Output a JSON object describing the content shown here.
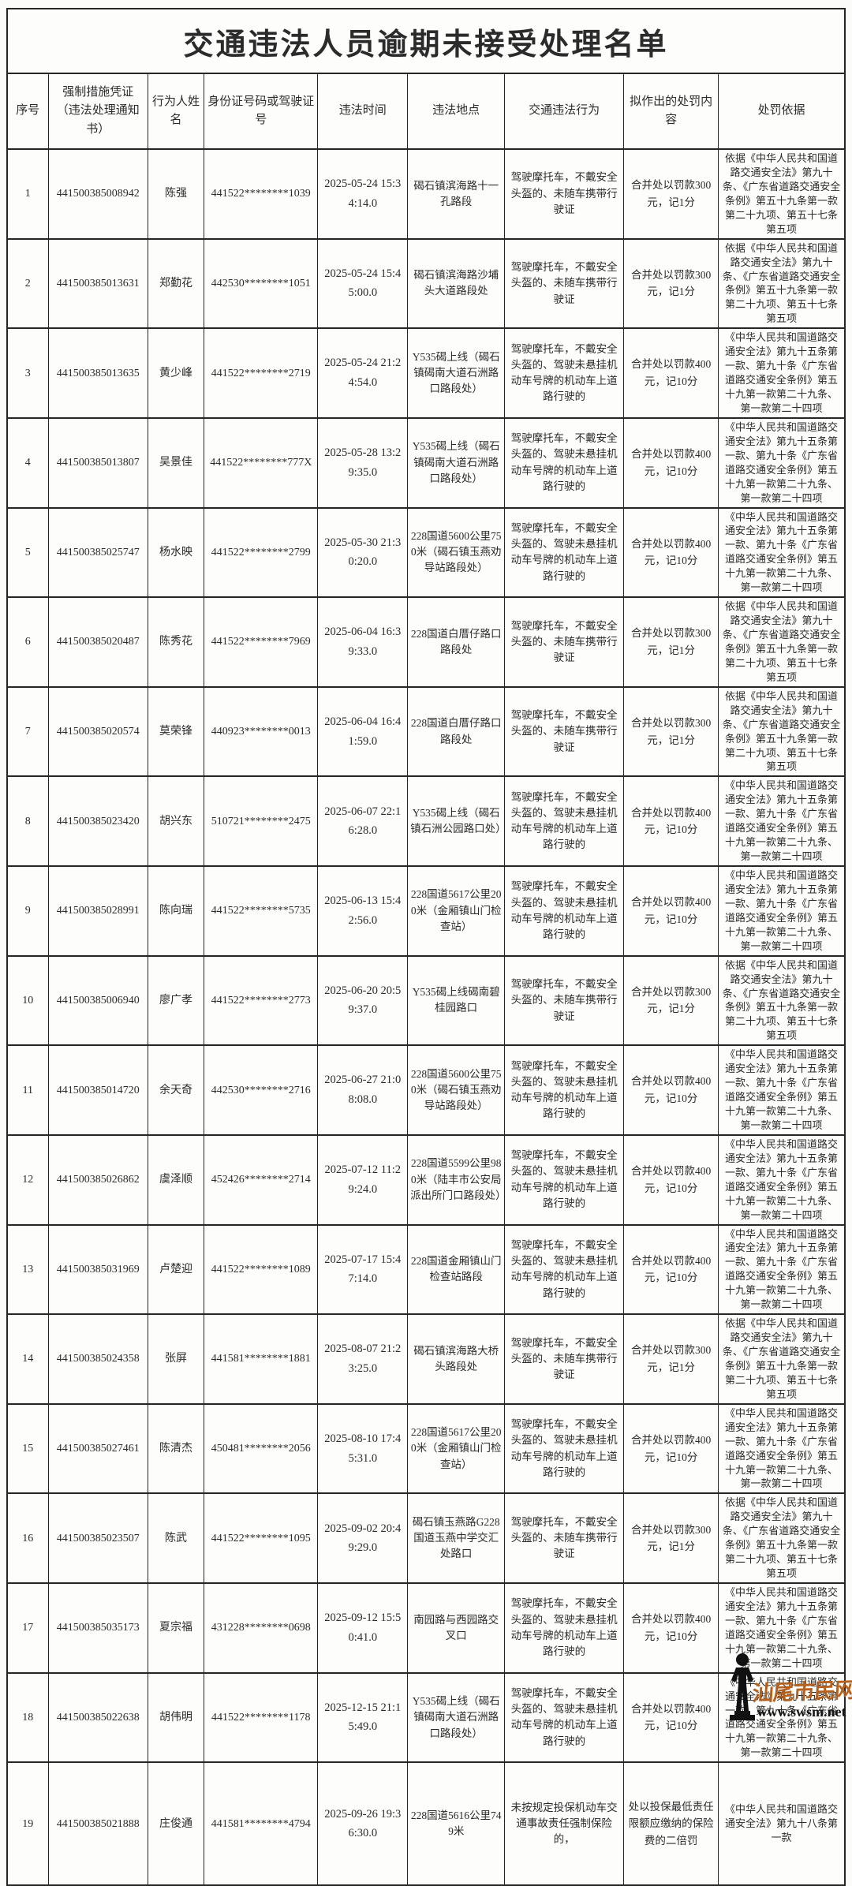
{
  "page": {
    "title": "交通违法人员逾期未接受处理名单"
  },
  "table": {
    "columns": [
      "序号",
      "强制措施凭证（违法处理通知书）",
      "行为人姓名",
      "身份证号码或驾驶证号",
      "违法时间",
      "违法地点",
      "交通违法行为",
      "拟作出的处罚内容",
      "处罚依据"
    ],
    "rows": [
      {
        "cells": [
          "1",
          "441500385008942",
          "陈强",
          "441522********1039",
          "2025-05-24 15:34:14.0",
          "碣石镇滨海路十一孔路段",
          "驾驶摩托车，不戴安全头盔的、未随车携带行驶证",
          "合并处以罚款300元，记1分",
          "依据《中华人民共和国道路交通安全法》第九十条、《广东省道路交通安全条例》第五十九条第一款第二十九项、第五十七条第五项"
        ]
      },
      {
        "cells": [
          "2",
          "441500385013631",
          "郑勤花",
          "442530********1051",
          "2025-05-24 15:45:00.0",
          "碣石镇滨海路沙埔头大道路段处",
          "驾驶摩托车，不戴安全头盔的、未随车携带行驶证",
          "合并处以罚款300元，记1分",
          "依据《中华人民共和国道路交通安全法》第九十条、《广东省道路交通安全条例》第五十九条第一款第二十九项、第五十七条第五项"
        ]
      },
      {
        "cells": [
          "3",
          "441500385013635",
          "黄少峰",
          "441522********2719",
          "2025-05-24 21:24:54.0",
          "Y535碣上线（碣石镇碣南大道石洲路口路段处）",
          "驾驶摩托车，不戴安全头盔的、驾驶未悬挂机动车号牌的机动车上道路行驶的",
          "合并处以罚款400元，记10分",
          "《中华人民共和国道路交通安全法》第九十五条第一款、第九十条《广东省道路交通安全条例》第五十九第一款第二十九条、第一款第二十四项"
        ]
      },
      {
        "cells": [
          "4",
          "441500385013807",
          "吴景佳",
          "441522********777X",
          "2025-05-28 13:29:35.0",
          "Y535碣上线（碣石镇碣南大道石洲路口路段处）",
          "驾驶摩托车，不戴安全头盔的、驾驶未悬挂机动车号牌的机动车上道路行驶的",
          "合并处以罚款400元，记10分",
          "《中华人民共和国道路交通安全法》第九十五条第一款、第九十条《广东省道路交通安全条例》第五十九第一款第二十九条、第一款第二十四项"
        ]
      },
      {
        "cells": [
          "5",
          "441500385025747",
          "杨水映",
          "441522********2799",
          "2025-05-30 21:30:20.0",
          "228国道5600公里750米（碣石镇玉燕劝导站路段处）",
          "驾驶摩托车，不戴安全头盔的、驾驶未悬挂机动车号牌的机动车上道路行驶的",
          "合并处以罚款400元，记10分",
          "《中华人民共和国道路交通安全法》第九十五条第一款、第九十条《广东省道路交通安全条例》第五十九第一款第二十九条、第一款第二十四项"
        ]
      },
      {
        "cells": [
          "6",
          "441500385020487",
          "陈秀花",
          "441522********7969",
          "2025-06-04 16:39:33.0",
          "228国道白厝仔路口路段处",
          "驾驶摩托车，不戴安全头盔的、未随车携带行驶证",
          "合并处以罚款300元，记1分",
          "依据《中华人民共和国道路交通安全法》第九十条、《广东省道路交通安全条例》第五十九条第一款第二十九项、第五十七条第五项"
        ]
      },
      {
        "cells": [
          "7",
          "441500385020574",
          "莫荣锋",
          "440923********0013",
          "2025-06-04 16:41:59.0",
          "228国道白厝仔路口路段处",
          "驾驶摩托车，不戴安全头盔的、未随车携带行驶证",
          "合并处以罚款300元，记1分",
          "依据《中华人民共和国道路交通安全法》第九十条、《广东省道路交通安全条例》第五十九条第一款第二十九项、第五十七条第五项"
        ]
      },
      {
        "cells": [
          "8",
          "441500385023420",
          "胡兴东",
          "510721********2475",
          "2025-06-07 22:16:28.0",
          "Y535碣上线（碣石镇石洲公园路口处）",
          "驾驶摩托车，不戴安全头盔的、驾驶未悬挂机动车号牌的机动车上道路行驶的",
          "合并处以罚款400元，记10分",
          "《中华人民共和国道路交通安全法》第九十五条第一款、第九十条《广东省道路交通安全条例》第五十九第一款第二十九条、第一款第二十四项"
        ]
      },
      {
        "cells": [
          "9",
          "441500385028991",
          "陈向瑞",
          "441522********5735",
          "2025-06-13 15:42:56.0",
          "228国道5617公里200米（金厢镇山门检查站）",
          "驾驶摩托车，不戴安全头盔的、驾驶未悬挂机动车号牌的机动车上道路行驶的",
          "合并处以罚款400元，记10分",
          "《中华人民共和国道路交通安全法》第九十五条第一款、第九十条《广东省道路交通安全条例》第五十九第一款第二十九条、第一款第二十四项"
        ]
      },
      {
        "cells": [
          "10",
          "441500385006940",
          "廖广孝",
          "441522********2773",
          "2025-06-20 20:59:37.0",
          "Y535碣上线碣南碧桂园路口",
          "驾驶摩托车，不戴安全头盔的、未随车携带行驶证",
          "合并处以罚款300元，记1分",
          "依据《中华人民共和国道路交通安全法》第九十条、《广东省道路交通安全条例》第五十九条第一款第二十九项、第五十七条第五项"
        ]
      },
      {
        "cells": [
          "11",
          "441500385014720",
          "余天奇",
          "442530********2716",
          "2025-06-27 21:08:08.0",
          "228国道5600公里750米（碣石镇玉燕劝导站路段处）",
          "驾驶摩托车，不戴安全头盔的、驾驶未悬挂机动车号牌的机动车上道路行驶的",
          "合并处以罚款400元，记10分",
          "《中华人民共和国道路交通安全法》第九十五条第一款、第九十条《广东省道路交通安全条例》第五十九第一款第二十九条、第一款第二十四项"
        ]
      },
      {
        "cells": [
          "12",
          "441500385026862",
          "虞泽顺",
          "452426********2714",
          "2025-07-12 11:29:24.0",
          "228国道5599公里980米（陆丰市公安局派出所门口路段处）",
          "驾驶摩托车，不戴安全头盔的、驾驶未悬挂机动车号牌的机动车上道路行驶的",
          "合并处以罚款400元，记10分",
          "《中华人民共和国道路交通安全法》第九十五条第一款、第九十条《广东省道路交通安全条例》第五十九第一款第二十九条、第一款第二十四项"
        ]
      },
      {
        "cells": [
          "13",
          "441500385031969",
          "卢楚迎",
          "441522********1089",
          "2025-07-17 15:47:14.0",
          "228国道金厢镇山门检查站路段",
          "驾驶摩托车，不戴安全头盔的、驾驶未悬挂机动车号牌的机动车上道路行驶的",
          "合并处以罚款400元，记10分",
          "《中华人民共和国道路交通安全法》第九十五条第一款、第九十条《广东省道路交通安全条例》第五十九第一款第二十九条、第一款第二十四项"
        ]
      },
      {
        "cells": [
          "14",
          "441500385024358",
          "张屏",
          "441581********1881",
          "2025-08-07 21:23:25.0",
          "碣石镇滨海路大桥头路段处",
          "驾驶摩托车，不戴安全头盔的、未随车携带行驶证",
          "合并处以罚款300元，记1分",
          "依据《中华人民共和国道路交通安全法》第九十条、《广东省道路交通安全条例》第五十九条第一款第二十九项、第五十七条第五项"
        ]
      },
      {
        "cells": [
          "15",
          "441500385027461",
          "陈清杰",
          "450481********2056",
          "2025-08-10 17:45:31.0",
          "228国道5617公里200米（金厢镇山门检查站）",
          "驾驶摩托车，不戴安全头盔的、驾驶未悬挂机动车号牌的机动车上道路行驶的",
          "合并处以罚款400元，记10分",
          "《中华人民共和国道路交通安全法》第九十五条第一款、第九十条《广东省道路交通安全条例》第五十九第一款第二十九条、第一款第二十四项"
        ]
      },
      {
        "cells": [
          "16",
          "441500385023507",
          "陈武",
          "441522********1095",
          "2025-09-02 20:49:29.0",
          "碣石镇玉燕路G228国道玉燕中学交汇处路口",
          "驾驶摩托车，不戴安全头盔的、未随车携带行驶证",
          "合并处以罚款300元，记1分",
          "依据《中华人民共和国道路交通安全法》第九十条、《广东省道路交通安全条例》第五十九条第一款第二十九项、第五十七条第五项"
        ]
      },
      {
        "cells": [
          "17",
          "441500385035173",
          "夏宗福",
          "431228********0698",
          "2025-09-12 15:50:41.0",
          "南园路与西园路交叉口",
          "驾驶摩托车，不戴安全头盔的、驾驶未悬挂机动车号牌的机动车上道路行驶的",
          "合并处以罚款400元，记10分",
          "《中华人民共和国道路交通安全法》第九十五条第一款、第九十条《广东省道路交通安全条例》第五十九第一款第二十九条、第一款第二十四项"
        ]
      },
      {
        "cells": [
          "18",
          "441500385022638",
          "胡伟明",
          "441522********1178",
          "2025-12-15 21:15:49.0",
          "Y535碣上线（碣石镇碣南大道石洲路口路段处）",
          "驾驶摩托车，不戴安全头盔的、驾驶未悬挂机动车号牌的机动车上道路行驶的",
          "合并处以罚款400元，记10分",
          "《中华人民共和国道路交通安全法》第九十五条第一款、第九十条《广东省道路交通安全条例》第五十九第一款第二十九条、第一款第二十四项"
        ]
      },
      {
        "cells": [
          "19",
          "441500385021888",
          "庄俊通",
          "441581********4794",
          "2025-09-26 19:36:30.0",
          "228国道5616公里749米",
          "未按规定投保机动车交通事故责任强制保险的，",
          "处以投保最低责任限额应缴纳的保险费的二倍罚",
          "《中华人民共和国道路交通安全法》第九十八条第一款"
        ]
      }
    ]
  },
  "watermark": {
    "site_name": "汕尾市民网",
    "site_url": "www.swsm.net",
    "person_icon": "person-silhouette",
    "name_color": "#b4611f",
    "icon_color": "#111111"
  }
}
